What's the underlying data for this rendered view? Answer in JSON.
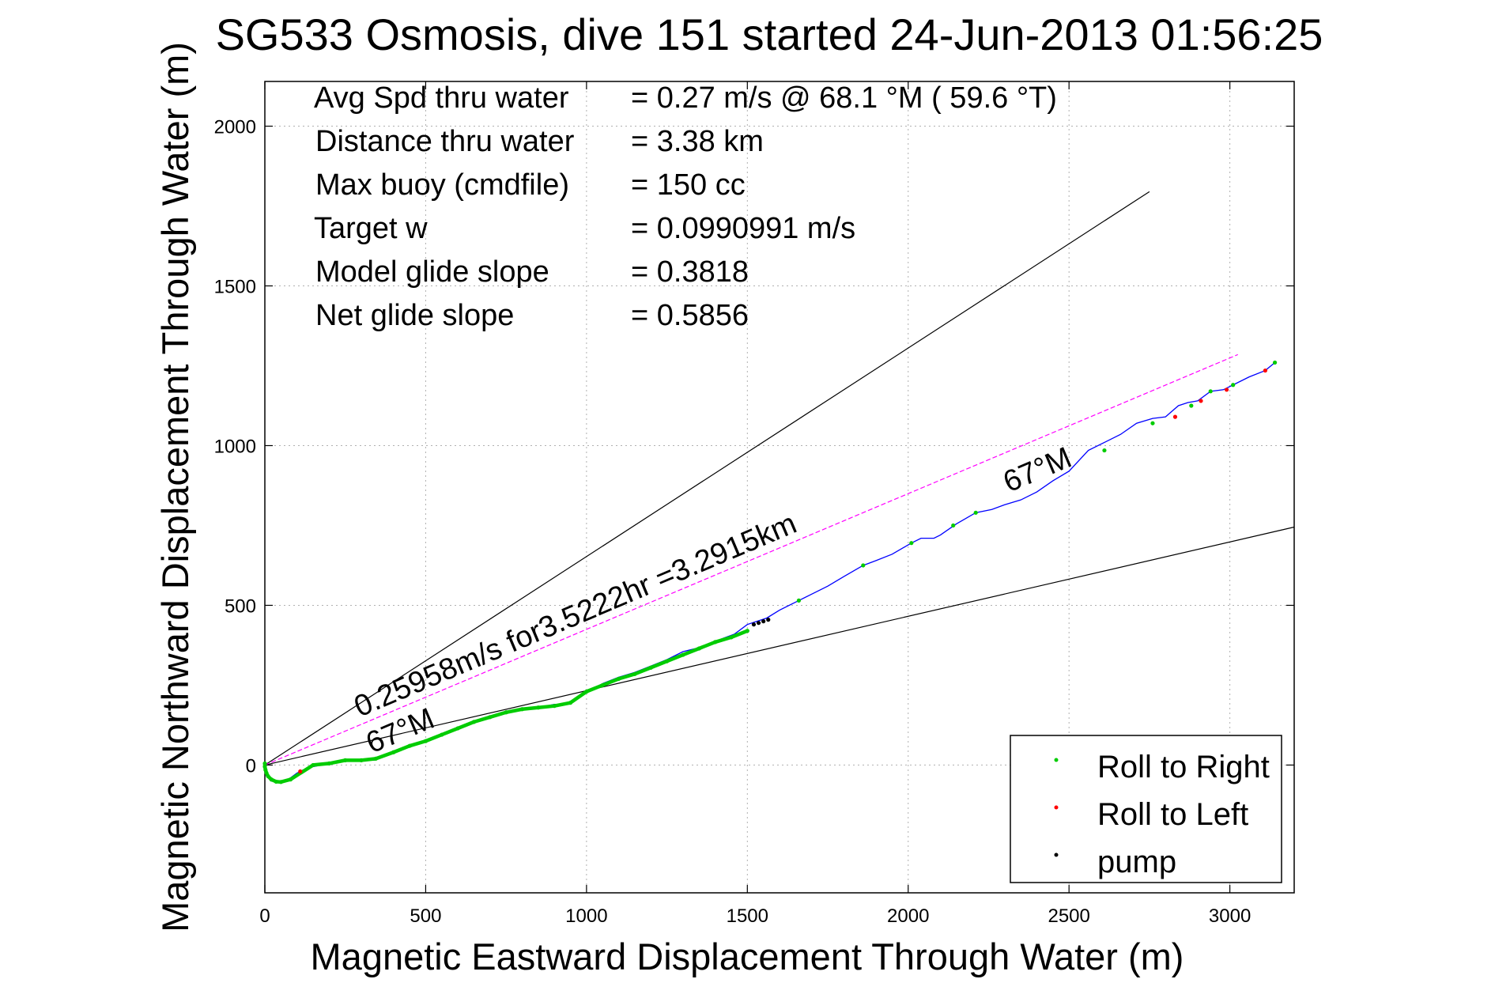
{
  "chart_data": {
    "type": "line",
    "title": "SG533 Osmosis, dive 151 started 24-Jun-2013 01:56:25",
    "xlabel": "Magnetic Eastward Displacement Through Water (m)",
    "ylabel": "Magnetic Northward Displacement Through Water (m)",
    "xlim": [
      0,
      3200
    ],
    "ylim": [
      -400,
      2140
    ],
    "xticks": [
      0,
      500,
      1000,
      1500,
      2000,
      2500,
      3000
    ],
    "yticks": [
      0,
      500,
      1000,
      1500,
      2000
    ],
    "grid": true,
    "legend_position": "bottom-right",
    "stats": [
      {
        "label": "Avg Spd thru water",
        "value": "=  0.27 m/s @  68.1 °M ( 59.6 °T)"
      },
      {
        "label": "Distance thru water",
        "value": "=  3.38 km"
      },
      {
        "label": "Max buoy (cmdfile)",
        "value": "= 150 cc"
      },
      {
        "label": "Target w",
        "value": "= 0.0990991 m/s"
      },
      {
        "label": "Model glide slope",
        "value": "= 0.3818"
      },
      {
        "label": "Net glide slope",
        "value": "= 0.5856"
      }
    ],
    "annotations": {
      "mean_track": "0.25958m/s for3.5222hr =3.2915km",
      "heading_lower": "67°M",
      "heading_upper": "67°M"
    },
    "reference_lines": [
      {
        "role": "upper-bound",
        "color": "#000000",
        "x": [
          0,
          2750
        ],
        "y": [
          0,
          1795
        ]
      },
      {
        "role": "lower-bound",
        "color": "#000000",
        "x": [
          0,
          3200
        ],
        "y": [
          0,
          745
        ]
      },
      {
        "role": "mean-track",
        "color": "#ff00ff",
        "x": [
          0,
          3025
        ],
        "y": [
          0,
          1285
        ]
      }
    ],
    "track": {
      "color": "#0000ff",
      "x": [
        0,
        -2,
        5,
        20,
        40,
        60,
        80,
        100,
        120,
        150,
        200,
        250,
        300,
        340,
        360,
        400,
        450,
        500,
        550,
        600,
        650,
        700,
        750,
        800,
        850,
        900,
        940,
        960,
        990,
        1010,
        1050,
        1100,
        1150,
        1200,
        1250,
        1300,
        1340,
        1380,
        1420,
        1460,
        1500,
        1530,
        1560,
        1600,
        1660,
        1700,
        1750,
        1800,
        1860,
        1900,
        1950,
        2010,
        2040,
        2080,
        2100,
        2150,
        2210,
        2260,
        2300,
        2350,
        2400,
        2450,
        2500,
        2560,
        2610,
        2660,
        2710,
        2760,
        2800,
        2840,
        2870,
        2900,
        2940,
        2980,
        3010,
        3060,
        3110,
        3140
      ],
      "y": [
        0,
        -15,
        -35,
        -50,
        -55,
        -50,
        -40,
        -25,
        -15,
        -5,
        5,
        15,
        15,
        15,
        25,
        40,
        60,
        75,
        95,
        115,
        135,
        150,
        165,
        175,
        180,
        190,
        190,
        200,
        225,
        235,
        255,
        275,
        290,
        310,
        330,
        355,
        365,
        380,
        395,
        410,
        440,
        450,
        460,
        485,
        515,
        535,
        560,
        590,
        625,
        640,
        660,
        695,
        710,
        710,
        720,
        755,
        790,
        800,
        815,
        830,
        855,
        890,
        920,
        985,
        1010,
        1035,
        1070,
        1085,
        1090,
        1125,
        1135,
        1140,
        1170,
        1175,
        1190,
        1215,
        1235,
        1260
      ]
    },
    "series": [
      {
        "name": "Roll to Right",
        "color": "#00cc00",
        "x": [
          0,
          0,
          2,
          5,
          10,
          20,
          35,
          50,
          80,
          150,
          200,
          250,
          300,
          345,
          400,
          450,
          500,
          550,
          600,
          650,
          700,
          750,
          800,
          850,
          900,
          950,
          1000,
          1050,
          1100,
          1150,
          1200,
          1250,
          1300,
          1350,
          1400,
          1450,
          1500,
          1660,
          1860,
          2010,
          2140,
          2210,
          2610,
          2760,
          2880,
          2940,
          3010,
          3140
        ],
        "y": [
          5,
          -5,
          -15,
          -25,
          -35,
          -45,
          -52,
          -53,
          -45,
          0,
          5,
          15,
          15,
          20,
          40,
          60,
          75,
          95,
          115,
          135,
          150,
          165,
          175,
          180,
          185,
          195,
          230,
          250,
          270,
          285,
          305,
          325,
          345,
          365,
          385,
          400,
          420,
          515,
          625,
          695,
          750,
          790,
          985,
          1070,
          1125,
          1170,
          1190,
          1260
        ]
      },
      {
        "name": "Roll to Left",
        "color": "#ff0000",
        "x": [
          110,
          2830,
          2910,
          2990,
          3110
        ],
        "y": [
          -20,
          1090,
          1140,
          1175,
          1235
        ]
      },
      {
        "name": "pump",
        "color": "#000000",
        "x": [
          1520,
          1535,
          1550,
          1565
        ],
        "y": [
          440,
          445,
          450,
          455
        ]
      }
    ]
  }
}
